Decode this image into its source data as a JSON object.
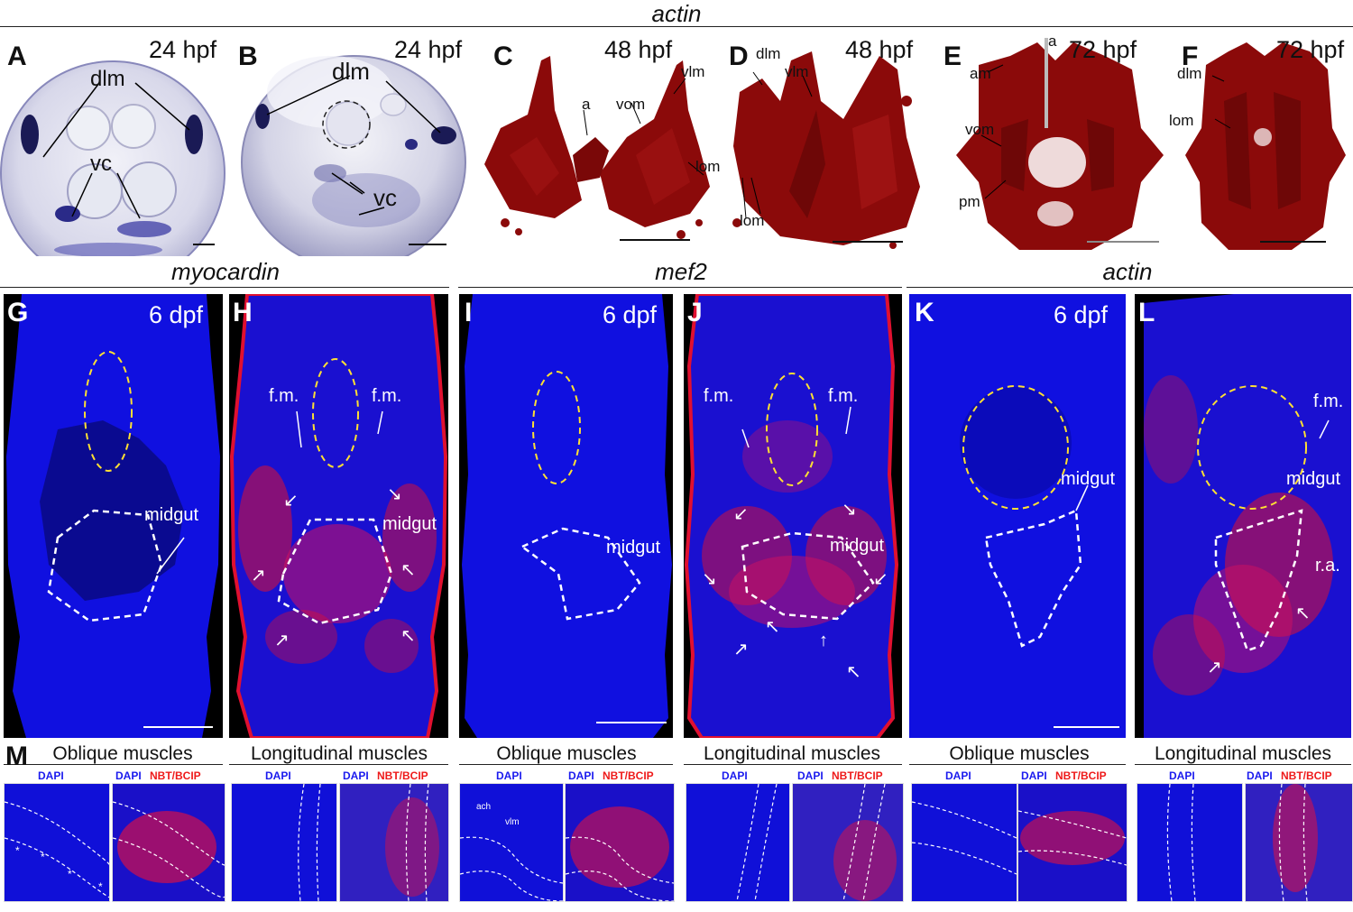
{
  "sections": {
    "top_gene": "actin",
    "myocardin": "myocardin",
    "mef2": "mef2",
    "actin_lower": "actin"
  },
  "panels": {
    "A": {
      "label": "A",
      "stage": "24 hpf",
      "annotations": [
        "dlm",
        "vc"
      ]
    },
    "B": {
      "label": "B",
      "stage": "24 hpf",
      "annotations": [
        "dlm",
        "vc"
      ]
    },
    "C": {
      "label": "C",
      "stage": "48 hpf",
      "annotations": [
        "a",
        "vom",
        "vlm",
        "lom"
      ]
    },
    "D": {
      "label": "D",
      "stage": "48 hpf",
      "annotations": [
        "dlm",
        "vlm",
        "lom"
      ]
    },
    "E": {
      "label": "E",
      "stage": "72 hpf",
      "annotations": [
        "a",
        "am",
        "vom",
        "pm"
      ]
    },
    "F": {
      "label": "F",
      "stage": "72 hpf",
      "annotations": [
        "dlm",
        "lom"
      ]
    },
    "G": {
      "label": "G",
      "stage": "6 dpf",
      "annotations": [
        "midgut"
      ]
    },
    "H": {
      "label": "H",
      "annotations": [
        "f.m.",
        "f.m.",
        "midgut"
      ]
    },
    "I": {
      "label": "I",
      "stage": "6 dpf",
      "annotations": [
        "midgut"
      ]
    },
    "J": {
      "label": "J",
      "annotations": [
        "f.m.",
        "f.m.",
        "midgut"
      ]
    },
    "K": {
      "label": "K",
      "stage": "6 dpf",
      "annotations": [
        "midgut"
      ]
    },
    "L": {
      "label": "L",
      "annotations": [
        "f.m.",
        "midgut",
        "r.a."
      ]
    },
    "M": {
      "label": "M"
    }
  },
  "m_row": {
    "groups": [
      {
        "title": "Oblique muscles"
      },
      {
        "title": "Longitudinal muscles"
      },
      {
        "title": "Oblique muscles"
      },
      {
        "title": "Longitudinal muscles"
      },
      {
        "title": "Oblique muscles"
      },
      {
        "title": "Longitudinal muscles"
      }
    ],
    "dapi": "DAPI",
    "nbt": "NBT/BCIP",
    "inset_labels": [
      "ach",
      "vlm"
    ]
  },
  "colors": {
    "dapi_blue": "#1010e0",
    "nbt_red": "#e01020",
    "muscle_3d": "#8b0a0a",
    "ish_purple": "#2a2a7a"
  }
}
